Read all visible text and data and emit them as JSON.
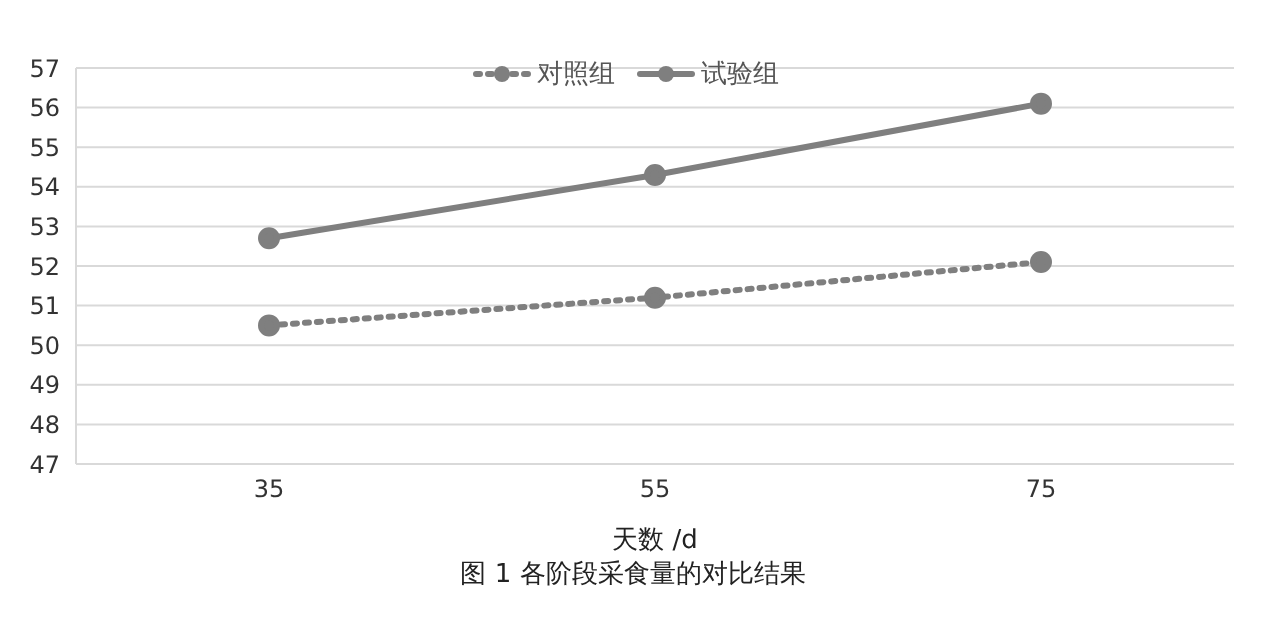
{
  "chart_data": {
    "type": "line",
    "title": "图 1  各阶段采食量的对比结果",
    "xlabel": "天数 /d",
    "categories": [
      "35",
      "55",
      "75"
    ],
    "series": [
      {
        "name": "对照组",
        "color": "#7f7f7f",
        "values": [
          50.5,
          51.2,
          52.1
        ],
        "line_style": "dotted"
      },
      {
        "name": "试验组",
        "color": "#7f7f7f",
        "values": [
          52.7,
          54.3,
          56.1
        ],
        "line_style": "solid"
      }
    ],
    "ylim": [
      47,
      57
    ],
    "yticks": [
      47,
      48,
      49,
      50,
      51,
      52,
      53,
      54,
      55,
      56,
      57
    ],
    "grid": "y",
    "legend": "top",
    "marker": "circle"
  }
}
